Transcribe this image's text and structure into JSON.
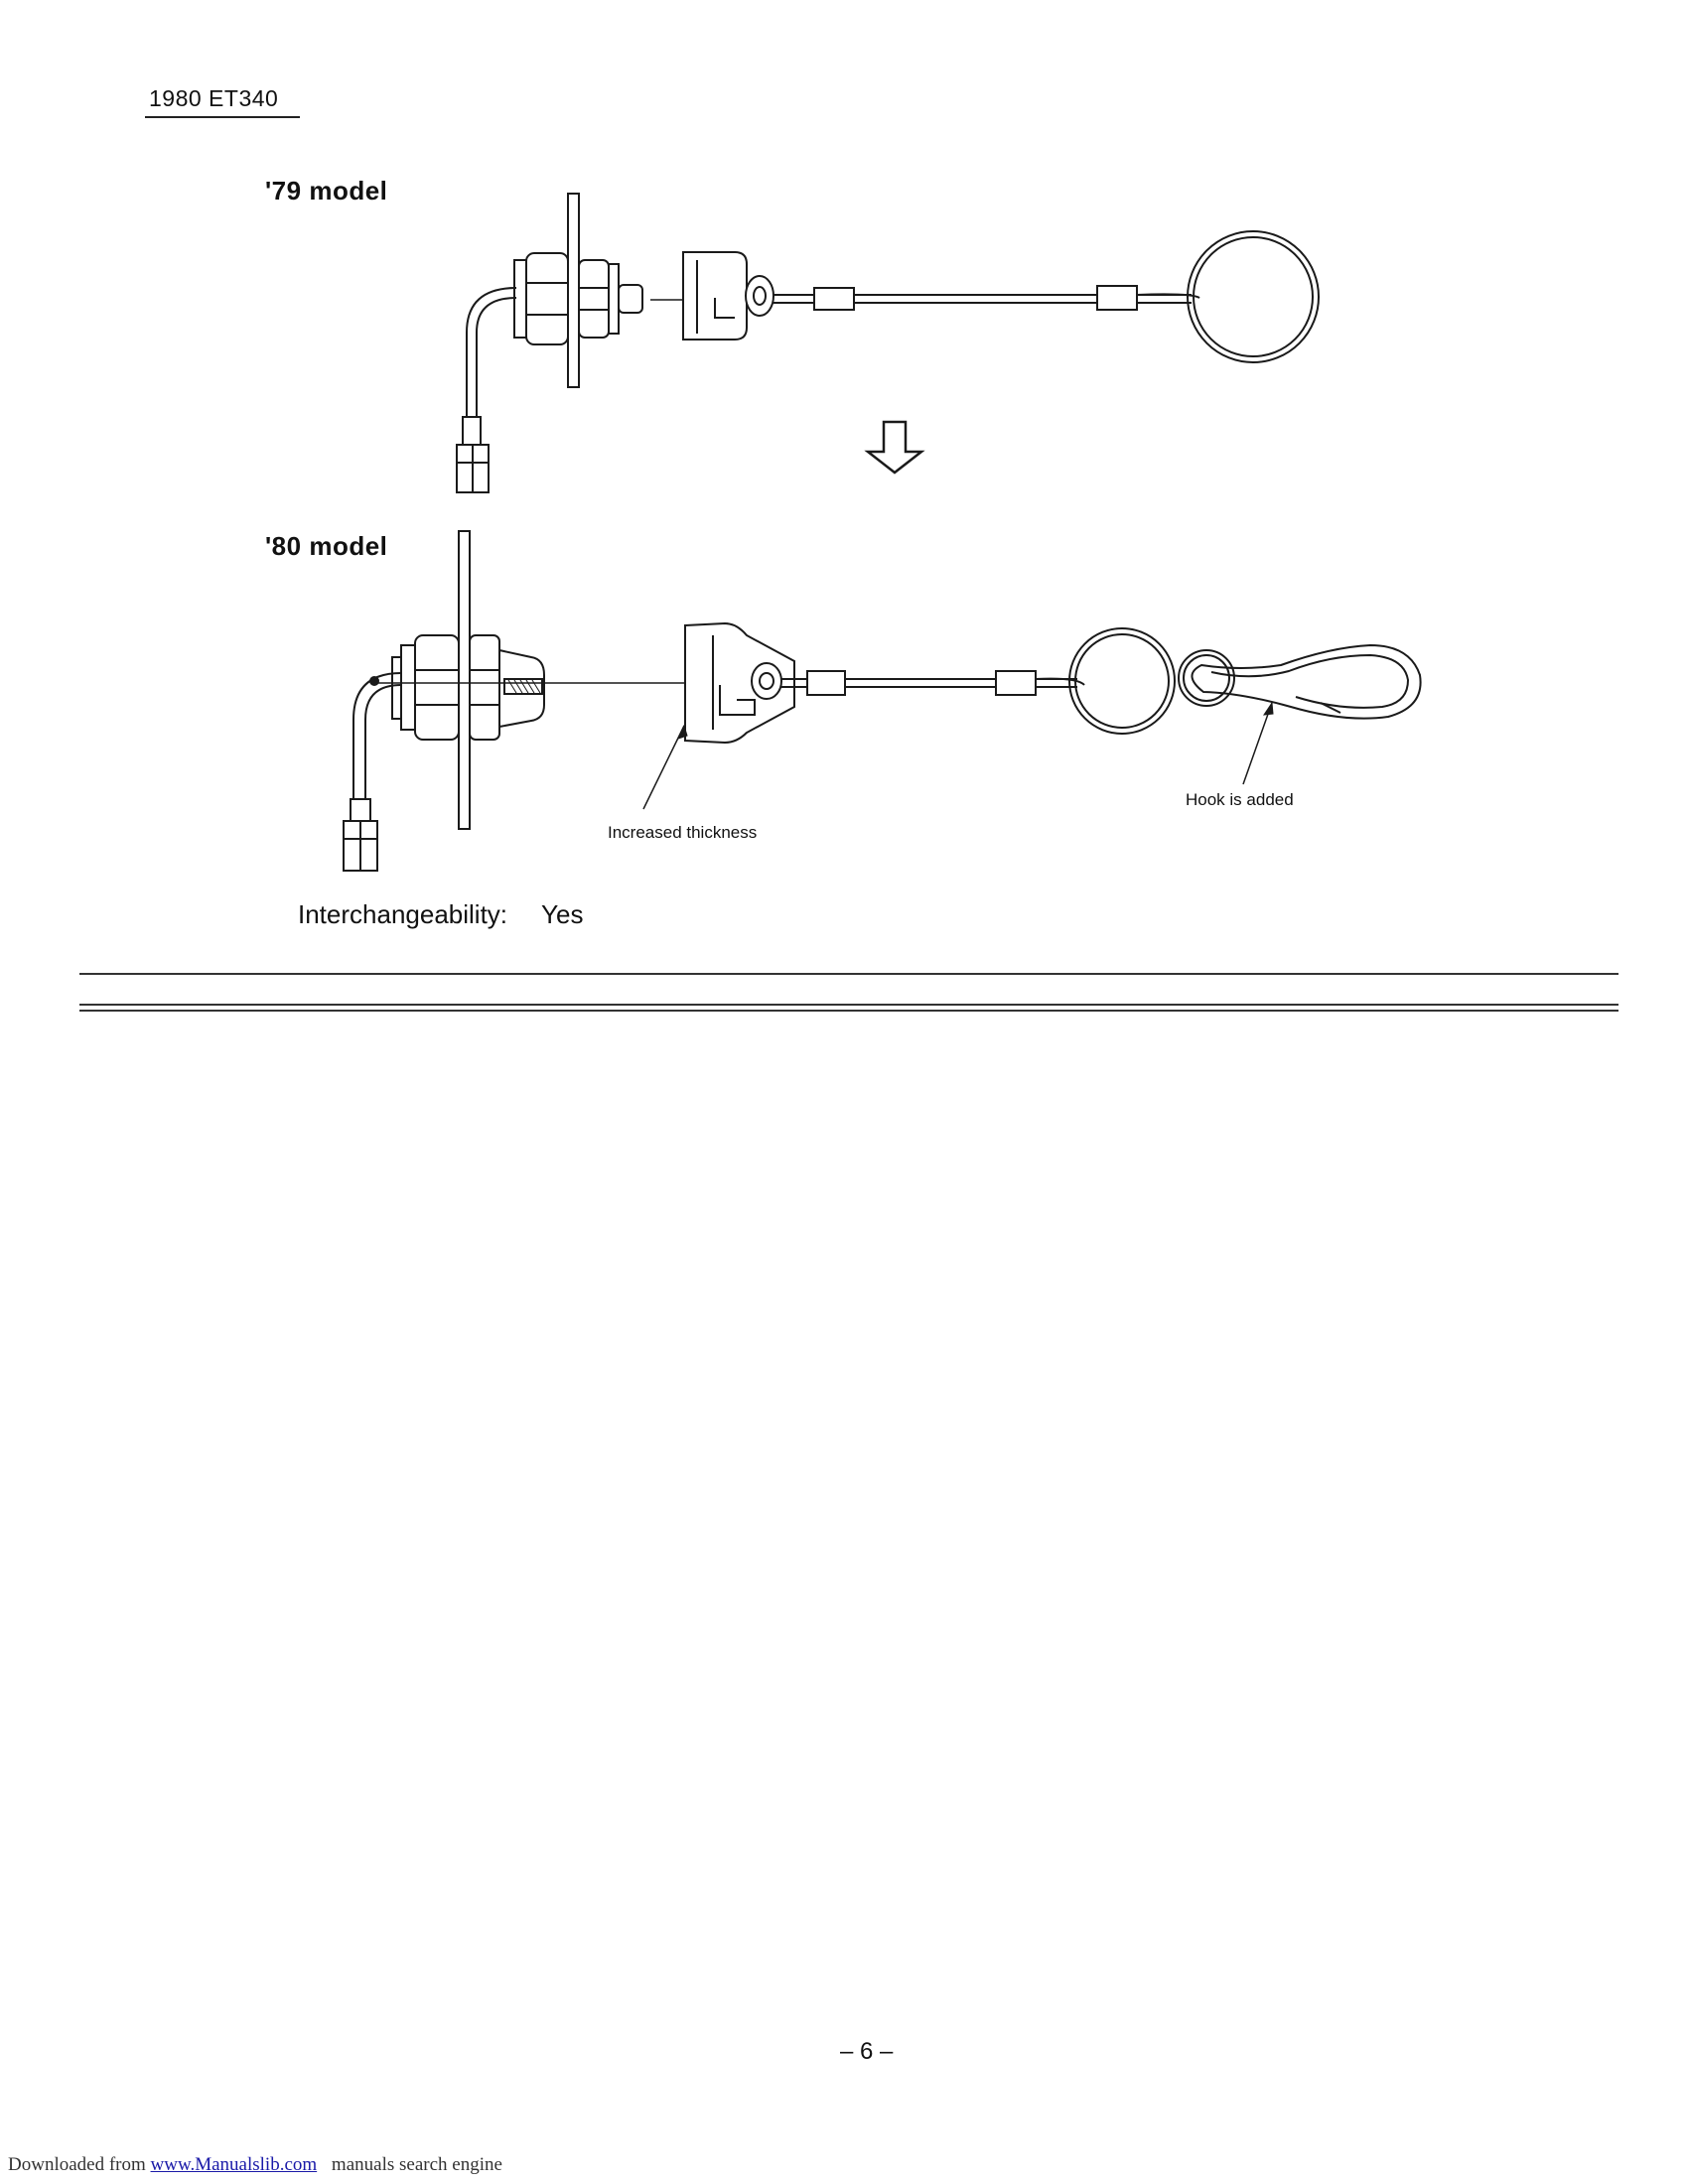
{
  "header": {
    "doc_code": "1980 ET340"
  },
  "figure_79": {
    "label": "'79 model"
  },
  "figure_80": {
    "label": "'80 model",
    "callout_thickness": "Increased thickness",
    "callout_hook": "Hook is added"
  },
  "interchangeability": {
    "label": "Interchangeability:",
    "value": "Yes"
  },
  "page_number": "– 6 –",
  "footer": {
    "prefix": "Downloaded from",
    "link_text": "www.Manualslib.com",
    "suffix": "manuals search engine"
  }
}
